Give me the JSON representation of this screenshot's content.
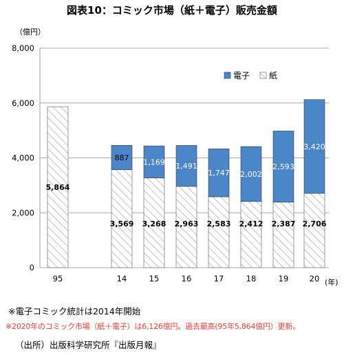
{
  "title": "図表10：コミック市場（紙＋電子）販売金額",
  "unit_label": "（億円）",
  "year_unit_label": "(年)",
  "notes": {
    "note1": "※電子コミック統計は2014年開始",
    "note2": "※2020年のコミック市場（紙＋電子）は6,126億円。過去最高(95年5,864億円）更新。",
    "source": "（出所）出版科学研究所『出版月報』"
  },
  "colors": {
    "electronic": "#4a86c8",
    "paper_hatch": "#a6a6a6",
    "note_red": "#e0403a"
  },
  "chart_data": {
    "type": "bar",
    "stacked": true,
    "categories": [
      "95",
      "14",
      "15",
      "16",
      "17",
      "18",
      "19",
      "20"
    ],
    "series": [
      {
        "name": "紙",
        "values": [
          5864,
          3569,
          3268,
          2963,
          2583,
          2412,
          2387,
          2706
        ],
        "labels": [
          "5,864",
          "3,569",
          "3,268",
          "2,963",
          "2,583",
          "2,412",
          "2,387",
          "2,706"
        ]
      },
      {
        "name": "電子",
        "values": [
          null,
          887,
          1169,
          1491,
          1747,
          2002,
          2593,
          3420
        ],
        "labels": [
          "",
          "887",
          "1,169",
          "1,491",
          "1,747",
          "2,002",
          "2,593",
          "3,420"
        ]
      }
    ],
    "y_ticks": [
      "0",
      "2,000",
      "4,000",
      "6,000",
      "8,000"
    ],
    "y_tick_values": [
      0,
      2000,
      4000,
      6000,
      8000
    ],
    "ylim": [
      0,
      8000
    ],
    "grid": true,
    "legend_position": "top-right",
    "legend": [
      {
        "name": "電子",
        "style": "solid"
      },
      {
        "name": "紙",
        "style": "hatched"
      }
    ]
  }
}
